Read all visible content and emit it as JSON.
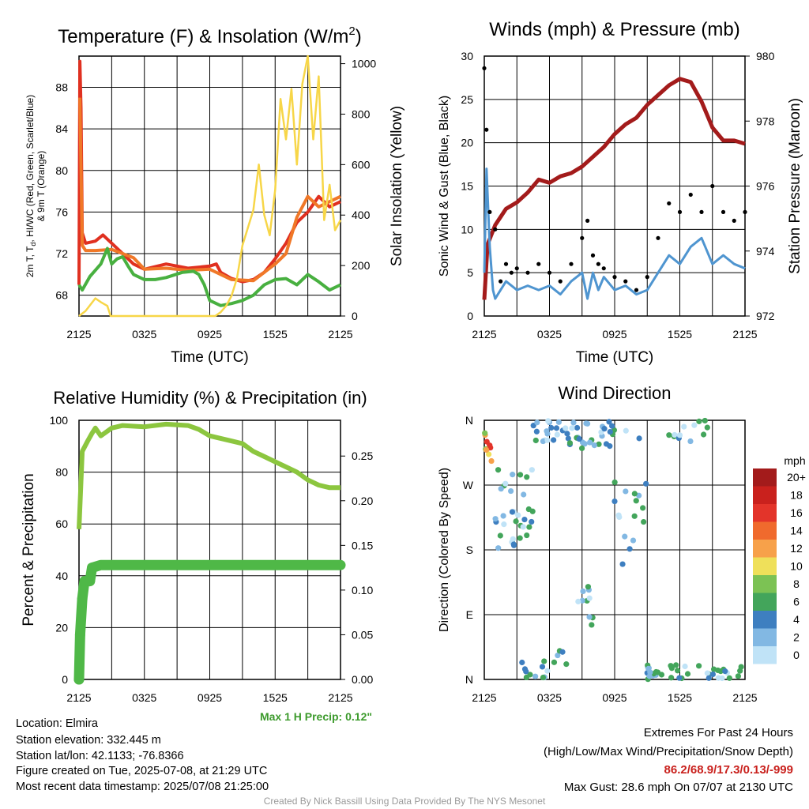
{
  "chart_data": [
    {
      "type": "line",
      "title": "Temperature (F) & Insolation (W/m",
      "title_sup": "2",
      "title_end": ")",
      "ylabel_lines": [
        "2m T, T",
        "d",
        ", HI/WC (Red, Green, Scarlet/Blue)",
        "& 9m T (Orange)"
      ],
      "ylabel_sub_note": "T with subscript d",
      "y2label": "Solar Insolation (Yellow)",
      "xlabel": "Time (UTC)",
      "x_ticks": [
        "2125",
        "0325",
        "0925",
        "1525",
        "2125"
      ],
      "y_ticks": [
        68,
        72,
        76,
        80,
        84,
        88
      ],
      "ylim": [
        66,
        91
      ],
      "y2_ticks": [
        0,
        200,
        400,
        600,
        800,
        1000
      ],
      "y2lim": [
        0,
        1030
      ],
      "x_hours": [
        0,
        24
      ],
      "series": [
        {
          "color": "#e03020",
          "axis": "left",
          "points": [
            [
              0,
              69
            ],
            [
              0.08,
              90.5
            ],
            [
              0.18,
              86
            ],
            [
              0.3,
              74
            ],
            [
              0.6,
              73
            ],
            [
              1.5,
              73.2
            ],
            [
              2.2,
              73.8
            ],
            [
              3,
              73
            ],
            [
              4,
              72
            ],
            [
              5,
              71
            ],
            [
              6,
              70.5
            ],
            [
              8,
              71
            ],
            [
              10,
              70.6
            ],
            [
              12,
              70.8
            ],
            [
              12.6,
              71
            ],
            [
              13,
              70.2
            ],
            [
              14,
              69.6
            ],
            [
              15,
              69.3
            ],
            [
              16,
              69.5
            ],
            [
              17,
              70.2
            ],
            [
              18,
              71.5
            ],
            [
              19,
              73
            ],
            [
              20,
              75
            ],
            [
              21,
              76
            ],
            [
              22,
              77.5
            ],
            [
              23,
              76.5
            ],
            [
              24,
              77
            ]
          ]
        },
        {
          "color": "#f07828",
          "axis": "left",
          "points": [
            [
              0.08,
              87
            ],
            [
              0.3,
              72.8
            ],
            [
              0.6,
              72.3
            ],
            [
              1.5,
              72.3
            ],
            [
              3,
              72.4
            ],
            [
              4,
              72
            ],
            [
              5,
              71.6
            ],
            [
              6,
              70.5
            ],
            [
              8,
              70.6
            ],
            [
              10,
              70.4
            ],
            [
              12,
              70.5
            ],
            [
              14,
              69.5
            ],
            [
              16,
              69.4
            ],
            [
              18,
              71
            ],
            [
              19,
              72
            ],
            [
              20,
              75.5
            ],
            [
              21,
              77.5
            ],
            [
              22,
              76.5
            ],
            [
              23,
              77
            ],
            [
              24,
              77.5
            ]
          ]
        },
        {
          "color": "#48b040",
          "axis": "left",
          "points": [
            [
              0,
              69
            ],
            [
              0.3,
              68.5
            ],
            [
              1,
              69.8
            ],
            [
              2,
              71
            ],
            [
              2.6,
              72.5
            ],
            [
              3,
              71
            ],
            [
              3.5,
              71.5
            ],
            [
              4,
              71.7
            ],
            [
              4.5,
              70.8
            ],
            [
              5,
              70
            ],
            [
              6,
              69.5
            ],
            [
              7,
              69.5
            ],
            [
              8,
              69.7
            ],
            [
              9.5,
              70.2
            ],
            [
              10.5,
              70.3
            ],
            [
              11,
              70
            ],
            [
              11.5,
              69
            ],
            [
              12,
              67.5
            ],
            [
              13,
              67
            ],
            [
              14,
              67.2
            ],
            [
              15,
              67.5
            ],
            [
              16,
              68
            ],
            [
              17,
              69
            ],
            [
              18,
              69.5
            ],
            [
              19,
              69.6
            ],
            [
              20,
              69
            ],
            [
              21,
              70
            ],
            [
              22,
              69.3
            ],
            [
              23,
              68.5
            ],
            [
              24,
              69
            ]
          ]
        },
        {
          "color": "#f7d648",
          "axis": "right",
          "points": [
            [
              0,
              0
            ],
            [
              0.6,
              20
            ],
            [
              1.5,
              70
            ],
            [
              2,
              55
            ],
            [
              2.6,
              40
            ],
            [
              2.9,
              0
            ],
            [
              5,
              0
            ],
            [
              7,
              0
            ],
            [
              9,
              0
            ],
            [
              11,
              0
            ],
            [
              12.5,
              0
            ],
            [
              13,
              15
            ],
            [
              13.5,
              40
            ],
            [
              14,
              80
            ],
            [
              14.5,
              150
            ],
            [
              15,
              280
            ],
            [
              16,
              420
            ],
            [
              16.5,
              600
            ],
            [
              17,
              400
            ],
            [
              17.5,
              320
            ],
            [
              18,
              500
            ],
            [
              18.5,
              860
            ],
            [
              19,
              700
            ],
            [
              19.5,
              900
            ],
            [
              20,
              600
            ],
            [
              20.5,
              920
            ],
            [
              21,
              1030
            ],
            [
              21.5,
              700
            ],
            [
              22,
              950
            ],
            [
              22.5,
              380
            ],
            [
              23,
              520
            ],
            [
              23.5,
              340
            ],
            [
              24,
              380
            ]
          ]
        }
      ]
    },
    {
      "type": "line",
      "title": "Winds (mph) & Pressure (mb)",
      "ylabel": "Sonic Wind & Gust (Blue, Black)",
      "y2label": "Station Pressure (Maroon)",
      "xlabel": "Time (UTC)",
      "x_ticks": [
        "2125",
        "0325",
        "0925",
        "1525",
        "2125"
      ],
      "y_ticks": [
        0,
        5,
        10,
        15,
        20,
        25,
        30
      ],
      "ylim": [
        0,
        30
      ],
      "y2_ticks": [
        972,
        974,
        976,
        978,
        980
      ],
      "y2lim": [
        972,
        980
      ],
      "x_hours": [
        0,
        24
      ],
      "series": [
        {
          "name": "Pressure",
          "color": "#a31b1b",
          "axis": "right",
          "points": [
            [
              0,
              972.5
            ],
            [
              0.3,
              974.2
            ],
            [
              1,
              974.8
            ],
            [
              2,
              975.3
            ],
            [
              3,
              975.5
            ],
            [
              4,
              975.8
            ],
            [
              5,
              976.2
            ],
            [
              6,
              976.1
            ],
            [
              7,
              976.3
            ],
            [
              8,
              976.4
            ],
            [
              9,
              976.6
            ],
            [
              10,
              976.9
            ],
            [
              11,
              977.2
            ],
            [
              12,
              977.6
            ],
            [
              13,
              977.9
            ],
            [
              14,
              978.1
            ],
            [
              15,
              978.5
            ],
            [
              16,
              978.8
            ],
            [
              17,
              979.1
            ],
            [
              18,
              979.3
            ],
            [
              19,
              979.2
            ],
            [
              20,
              978.6
            ],
            [
              21,
              977.8
            ],
            [
              22,
              977.4
            ],
            [
              23,
              977.4
            ],
            [
              24,
              977.3
            ]
          ]
        },
        {
          "name": "Wind",
          "color": "#4f95d0",
          "axis": "left",
          "points": [
            [
              0,
              5
            ],
            [
              0.2,
              17
            ],
            [
              0.5,
              8
            ],
            [
              0.8,
              3
            ],
            [
              1,
              2
            ],
            [
              1.5,
              3
            ],
            [
              2,
              4
            ],
            [
              3,
              3
            ],
            [
              4,
              3.5
            ],
            [
              5,
              3
            ],
            [
              6,
              3.5
            ],
            [
              7,
              2.5
            ],
            [
              8,
              4
            ],
            [
              9,
              5
            ],
            [
              9.5,
              2
            ],
            [
              10,
              5
            ],
            [
              10.5,
              3
            ],
            [
              11,
              4.5
            ],
            [
              12,
              3
            ],
            [
              13,
              3.5
            ],
            [
              14,
              2.5
            ],
            [
              15,
              3
            ],
            [
              16,
              5
            ],
            [
              17,
              7
            ],
            [
              18,
              6
            ],
            [
              19,
              8
            ],
            [
              20,
              9
            ],
            [
              21,
              6
            ],
            [
              22,
              7
            ],
            [
              23,
              6
            ],
            [
              24,
              5.5
            ]
          ]
        }
      ],
      "gust_points": [
        [
          0,
          28.6
        ],
        [
          0.2,
          21.5
        ],
        [
          0.5,
          12
        ],
        [
          1,
          10
        ],
        [
          1.5,
          4
        ],
        [
          2,
          6
        ],
        [
          2.5,
          5
        ],
        [
          3,
          5.5
        ],
        [
          4,
          5
        ],
        [
          5,
          6
        ],
        [
          6,
          5
        ],
        [
          7,
          4
        ],
        [
          8,
          6
        ],
        [
          9,
          9
        ],
        [
          9.5,
          11
        ],
        [
          10,
          7
        ],
        [
          10.5,
          6
        ],
        [
          11,
          5.5
        ],
        [
          12,
          4.5
        ],
        [
          13,
          4
        ],
        [
          14,
          3
        ],
        [
          15,
          4.5
        ],
        [
          16,
          9
        ],
        [
          17,
          13
        ],
        [
          18,
          12
        ],
        [
          19,
          14
        ],
        [
          20,
          12
        ],
        [
          21,
          15
        ],
        [
          22,
          12
        ],
        [
          23,
          11
        ],
        [
          24,
          12
        ]
      ]
    },
    {
      "type": "line",
      "title": "Relative Humidity (%) & Precipitation (in)",
      "ylabel": "Percent & Precipitation",
      "x_ticks": [
        "2125",
        "0325",
        "0925",
        "1525",
        "2125"
      ],
      "y_ticks": [
        0,
        20,
        40,
        60,
        80,
        100
      ],
      "ylim": [
        0,
        100
      ],
      "y2_ticks": [
        "0.00",
        "0.05",
        "0.10",
        "0.15",
        "0.20",
        "0.25"
      ],
      "y2lim": [
        0,
        0.29
      ],
      "x_hours": [
        0,
        24
      ],
      "series": [
        {
          "name": "RH",
          "color": "#8cc63f",
          "axis": "left",
          "points": [
            [
              0,
              58
            ],
            [
              0.3,
              88
            ],
            [
              0.8,
              92
            ],
            [
              1.2,
              95
            ],
            [
              1.5,
              97
            ],
            [
              2,
              94
            ],
            [
              3,
              97
            ],
            [
              4,
              98
            ],
            [
              6,
              97.5
            ],
            [
              8,
              98.5
            ],
            [
              10,
              98
            ],
            [
              11,
              96.5
            ],
            [
              12,
              94
            ],
            [
              14,
              92
            ],
            [
              15,
              91
            ],
            [
              16,
              88
            ],
            [
              17,
              86
            ],
            [
              18,
              84
            ],
            [
              19,
              82
            ],
            [
              20,
              80
            ],
            [
              21,
              77
            ],
            [
              22,
              75
            ],
            [
              23,
              74
            ],
            [
              24,
              74
            ]
          ]
        },
        {
          "name": "Precip",
          "color": "#4fb847",
          "axis": "right",
          "points": [
            [
              0,
              0
            ],
            [
              0.1,
              0.05
            ],
            [
              0.3,
              0.09
            ],
            [
              0.5,
              0.11
            ],
            [
              1,
              0.11
            ],
            [
              1.2,
              0.125
            ],
            [
              2,
              0.128
            ],
            [
              24,
              0.128
            ]
          ]
        }
      ],
      "max_precip": "Max 1 H Precip: 0.12\""
    },
    {
      "type": "scatter",
      "title": "Wind Direction",
      "ylabel": "Direction (Colored By Speed)",
      "x_ticks": [
        "2125",
        "0325",
        "0925",
        "1525",
        "2125"
      ],
      "y_ticks": [
        "N",
        "E",
        "S",
        "W",
        "N"
      ],
      "ylim": [
        0,
        360
      ],
      "x_hours": [
        0,
        24
      ],
      "legend_title": "mph",
      "legend_labels": [
        "20+",
        "18",
        "16",
        "14",
        "12",
        "10",
        "8",
        "6",
        "4",
        "2",
        "0"
      ],
      "legend_colors": [
        "#a31b1b",
        "#c9211d",
        "#e3342a",
        "#f06a2d",
        "#f7a14a",
        "#efe05a",
        "#7cc254",
        "#43a55b",
        "#3e7fc0",
        "#82b8e3",
        "#c0e3f7"
      ]
    }
  ],
  "info": {
    "location": "Location: Elmira",
    "elevation": "Station elevation: 332.445 m",
    "latlon": "Station lat/lon: 42.1133; -76.8366",
    "created": "Figure created on Tue, 2025-07-08, at 21:29 UTC",
    "recent": "Most recent data timestamp: 2025/07/08 21:25:00"
  },
  "extremes": {
    "title": "Extremes For Past 24 Hours",
    "subtitle": "(High/Low/Max Wind/Precipitation/Snow Depth)",
    "values": "86.2/68.9/17.3/0.13/-999",
    "gust": "Max Gust: 28.6 mph On 07/07 at 2130 UTC"
  },
  "footer": "Created By Nick Bassill Using Data Provided By The NYS Mesonet",
  "colors": {
    "extremes": "#c9211d",
    "max_precip": "#3c9a2c"
  }
}
